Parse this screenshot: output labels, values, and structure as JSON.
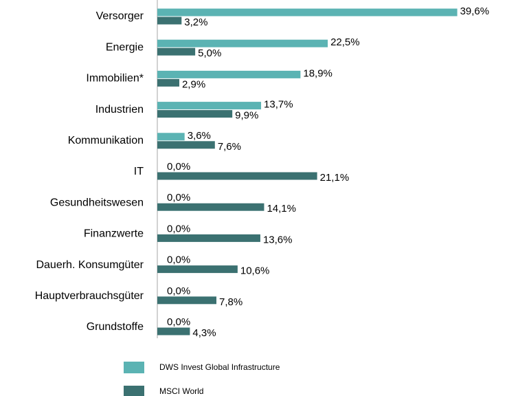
{
  "chart_data": {
    "type": "hbar",
    "categories": [
      "Versorger",
      "Energie",
      "Immobilien*",
      "Industrien",
      "Kommunikation",
      "IT",
      "Gesundheitswesen",
      "Finanzwerte",
      "Dauerh. Konsumgüter",
      "Hauptverbrauchsgüter",
      "Grundstoffe"
    ],
    "series": [
      {
        "name": "DWS Invest Global Infrastructure",
        "color": "#5bb3b3",
        "values": [
          39.6,
          22.5,
          18.9,
          13.7,
          3.6,
          0.0,
          0.0,
          0.0,
          0.0,
          0.0,
          0.0
        ],
        "value_labels": [
          "39,6%",
          "22,5%",
          "18,9%",
          "13,7%",
          "3,6%",
          "0,0%",
          "0,0%",
          "0,0%",
          "0,0%",
          "0,0%",
          "0,0%"
        ]
      },
      {
        "name": "MSCI World",
        "color": "#3b7171",
        "values": [
          3.2,
          5.0,
          2.9,
          9.9,
          7.6,
          21.1,
          14.1,
          13.6,
          10.6,
          7.8,
          4.3
        ],
        "value_labels": [
          "3,2%",
          "5,0%",
          "2,9%",
          "9,9%",
          "7,6%",
          "21,1%",
          "14,1%",
          "13,6%",
          "10,6%",
          "7,8%",
          "4,3%"
        ]
      }
    ],
    "xlim": [
      0,
      40
    ],
    "legend": "bottom"
  }
}
